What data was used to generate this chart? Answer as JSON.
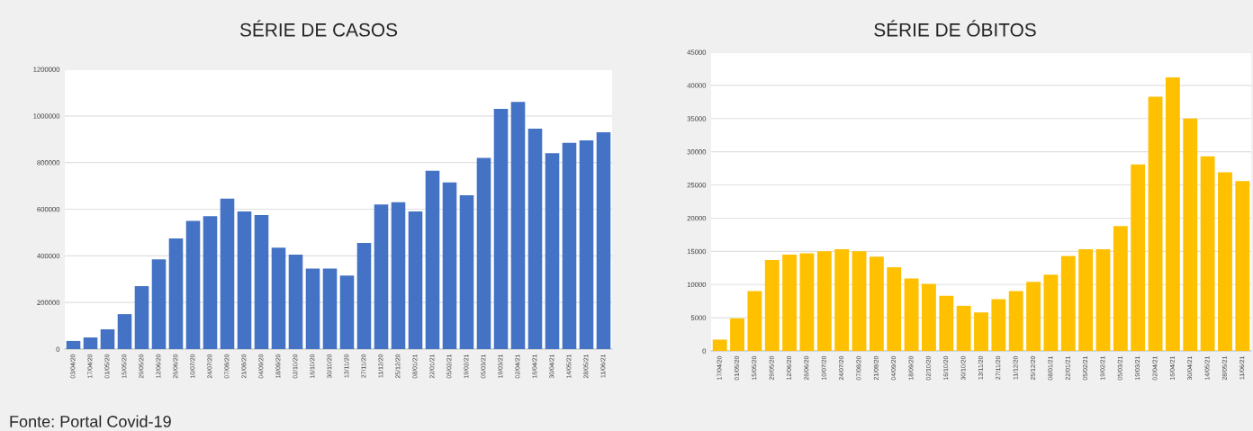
{
  "chart_data": [
    {
      "type": "bar",
      "title": "SÉRIE DE CASOS",
      "categories": [
        "03/04/20",
        "17/04/20",
        "01/05/20",
        "15/05/20",
        "29/05/20",
        "12/06/20",
        "26/06/20",
        "10/07/20",
        "24/07/20",
        "07/08/20",
        "21/08/20",
        "04/09/20",
        "18/09/20",
        "02/10/20",
        "16/10/20",
        "30/10/20",
        "13/11/20",
        "27/11/20",
        "11/12/20",
        "25/12/20",
        "08/01/21",
        "22/01/21",
        "05/02/21",
        "19/02/21",
        "05/03/21",
        "19/03/21",
        "02/04/21",
        "16/04/21",
        "30/04/21",
        "14/05/21",
        "28/05/21",
        "11/06/21"
      ],
      "series": [
        {
          "color": "#4472c4",
          "values": [
            35000,
            50000,
            85000,
            150000,
            270000,
            385000,
            475000,
            550000,
            570000,
            645000,
            590000,
            575000,
            435000,
            405000,
            345000,
            345000,
            315000,
            455000,
            620000,
            630000,
            590000,
            765000,
            715000,
            660000,
            820000,
            1030000,
            1060000,
            945000,
            840000,
            885000,
            895000,
            930000
          ]
        }
      ],
      "ylim": [
        0,
        1200000
      ],
      "yticks": [
        0,
        200000,
        400000,
        600000,
        800000,
        1000000,
        1200000
      ],
      "grid": "y",
      "annotations": [
        "Fonte: Portal Covid-19"
      ]
    },
    {
      "type": "bar",
      "title": "SÉRIE DE ÓBITOS",
      "categories": [
        "17/04/20",
        "01/05/20",
        "15/05/20",
        "29/05/20",
        "12/06/20",
        "26/06/20",
        "10/07/20",
        "24/07/20",
        "07/08/20",
        "21/08/20",
        "04/09/20",
        "18/09/20",
        "02/10/20",
        "16/10/20",
        "30/10/20",
        "13/11/20",
        "27/11/20",
        "11/12/20",
        "25/12/20",
        "08/01/21",
        "22/01/21",
        "05/02/21",
        "19/02/21",
        "05/03/21",
        "19/03/21",
        "02/04/21",
        "16/04/21",
        "30/04/21",
        "14/05/21",
        "28/05/21",
        "11/06/21"
      ],
      "series": [
        {
          "color": "#ffc000",
          "values": [
            1700,
            4900,
            9000,
            13700,
            14500,
            14700,
            15000,
            15300,
            15000,
            14200,
            12600,
            10900,
            10100,
            8300,
            6800,
            5800,
            7800,
            9000,
            10400,
            11500,
            14300,
            15300,
            15300,
            18800,
            28100,
            38300,
            41200,
            35000,
            29300,
            26900,
            25600
          ]
        }
      ],
      "ylim": [
        0,
        45000
      ],
      "yticks": [
        0,
        5000,
        10000,
        15000,
        20000,
        25000,
        30000,
        35000,
        40000,
        45000
      ],
      "grid": "y"
    }
  ]
}
